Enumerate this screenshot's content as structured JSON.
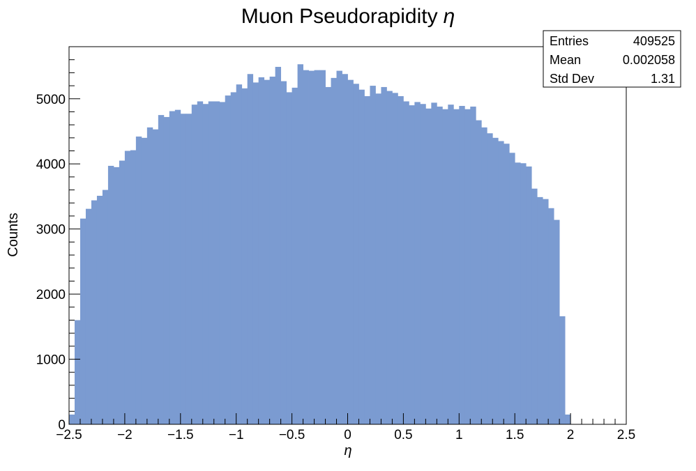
{
  "chart_data": {
    "type": "bar",
    "histogram": true,
    "title": "Muon Pseudorapidity",
    "title_symbol": "η",
    "xlabel": "η",
    "ylabel": "Counts",
    "xlim": [
      -2.5,
      2.5
    ],
    "ylim": [
      0,
      5800
    ],
    "bin_width": 0.05,
    "x_ticks": [
      -2.5,
      -2,
      -1.5,
      -1,
      -0.5,
      0,
      0.5,
      1,
      1.5,
      2,
      2.5
    ],
    "x_tick_labels": [
      "−2.5",
      "−2",
      "−1.5",
      "−1",
      "−0.5",
      "0",
      "0.5",
      "1",
      "1.5",
      "2",
      "2.5"
    ],
    "y_ticks": [
      0,
      1000,
      2000,
      3000,
      4000,
      5000
    ],
    "y_tick_labels": [
      "0",
      "1000",
      "2000",
      "3000",
      "4000",
      "5000"
    ],
    "fill_color": "#7b9bd1",
    "values": [
      150,
      1600,
      3160,
      3310,
      3440,
      3510,
      3600,
      3970,
      3950,
      4050,
      4200,
      4210,
      4420,
      4400,
      4560,
      4530,
      4750,
      4720,
      4810,
      4830,
      4770,
      4770,
      4910,
      4960,
      4920,
      4960,
      4960,
      4950,
      5050,
      5100,
      5220,
      5160,
      5380,
      5250,
      5330,
      5290,
      5340,
      5490,
      5270,
      5100,
      5170,
      5530,
      5440,
      5430,
      5440,
      5440,
      5180,
      5320,
      5430,
      5380,
      5290,
      5230,
      5140,
      5040,
      5200,
      5080,
      5180,
      5120,
      5090,
      5040,
      4960,
      4900,
      4950,
      4920,
      4850,
      4940,
      4880,
      4840,
      4910,
      4840,
      4890,
      4840,
      4880,
      4670,
      4560,
      4470,
      4400,
      4350,
      4310,
      4170,
      4020,
      4010,
      3960,
      3620,
      3490,
      3460,
      3320,
      3140,
      1660,
      150
    ],
    "stats": {
      "rows": [
        {
          "label": "Entries",
          "value": "409525"
        },
        {
          "label": "Mean",
          "value": "0.002058"
        },
        {
          "label": "Std Dev",
          "value": "1.31"
        }
      ]
    }
  }
}
